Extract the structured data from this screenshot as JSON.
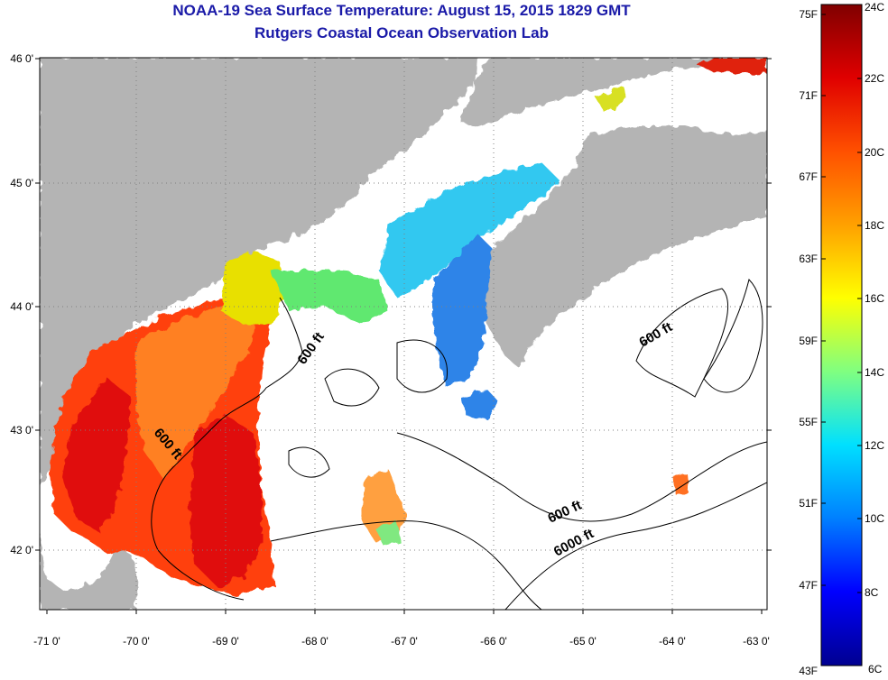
{
  "title": {
    "line1": "NOAA-19 Sea Surface Temperature:  August 15, 2015 1829 GMT",
    "line2": "Rutgers Coastal Ocean Observation Lab"
  },
  "map": {
    "lon_labels": [
      "-71 0'",
      "-70 0'",
      "-69 0'",
      "-68 0'",
      "-67 0'",
      "-66 0'",
      "-65 0'",
      "-64 0'",
      "-63 0'"
    ],
    "lat_labels": [
      "46 0'",
      "45 0'",
      "44 0'",
      "43 0'",
      "42 0'"
    ],
    "lon_range": [
      -71,
      -63
    ],
    "lat_range": [
      41.55,
      46
    ],
    "land_color": "#b4b4b4",
    "grid": "dotted",
    "contour_labels": [
      "600 ft",
      "600 ft",
      "600 ft",
      "600 ft",
      "6000 ft"
    ]
  },
  "colorbar": {
    "colors": [
      "#800000",
      "#e00000",
      "#ff5000",
      "#ffa000",
      "#ffff00",
      "#80ff80",
      "#00e0ff",
      "#0080ff",
      "#0000ff",
      "#000090"
    ],
    "fahrenheit_labels": [
      "75F",
      "71F",
      "67F",
      "63F",
      "59F",
      "55F",
      "51F",
      "47F",
      "43F"
    ],
    "celsius_labels": [
      "24C",
      "22C",
      "20C",
      "18C",
      "16C",
      "14C",
      "12C",
      "10C",
      "8C",
      "6C"
    ]
  }
}
